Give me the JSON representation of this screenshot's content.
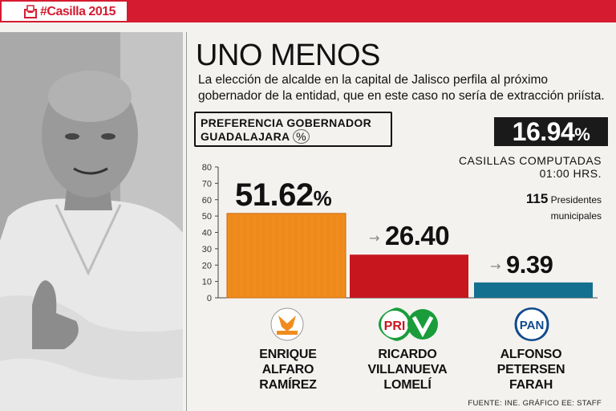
{
  "header": {
    "tag": "#Casilla 2015"
  },
  "title": "UNO MENOS",
  "subtitle": "La elección de alcalde en la capital de Jalisco perfila al próximo gobernador de la entidad, que en este caso no sería de extracción priísta.",
  "preference_box": {
    "line1": "PREFERENCIA GOBERNADOR",
    "line2": "GUADALAJARA",
    "unit": "%"
  },
  "counted": {
    "value": "16.94",
    "unit": "%",
    "label_line1": "CASILLAS COMPUTADAS",
    "label_line2": "01:00 HRS."
  },
  "presidents": {
    "count": "115",
    "label_line1": "Presidentes",
    "label_line2": "municipales"
  },
  "parties": {
    "mc": "MOVIMIENTO CIUDADANO",
    "pri": "PRI",
    "pan": "PAN"
  },
  "chart_data": {
    "type": "bar",
    "categories": [
      "ENRIQUE ALFARO RAMÍREZ",
      "RICARDO VILLANUEVA LOMELÍ",
      "ALFONSO PETERSEN FARAH"
    ],
    "values": [
      51.62,
      26.4,
      9.39
    ],
    "value_labels": [
      "51.62",
      "26.40",
      "9.39"
    ],
    "value_unit": "%",
    "colors": [
      "#f08c1e",
      "#c8161e",
      "#14708f"
    ],
    "ylim": [
      0,
      80
    ],
    "yticks": [
      0,
      10,
      20,
      30,
      40,
      50,
      60,
      70,
      80
    ],
    "grid": false
  },
  "candidates": [
    {
      "line1": "ENRIQUE",
      "line2": "ALFARO",
      "line3": "RAMÍREZ"
    },
    {
      "line1": "RICARDO",
      "line2": "VILLANUEVA",
      "line3": "LOMELÍ"
    },
    {
      "line1": "ALFONSO",
      "line2": "PETERSEN",
      "line3": "FARAH"
    }
  ],
  "source": "FUENTE: INE. GRÁFICO EE: STAFF"
}
